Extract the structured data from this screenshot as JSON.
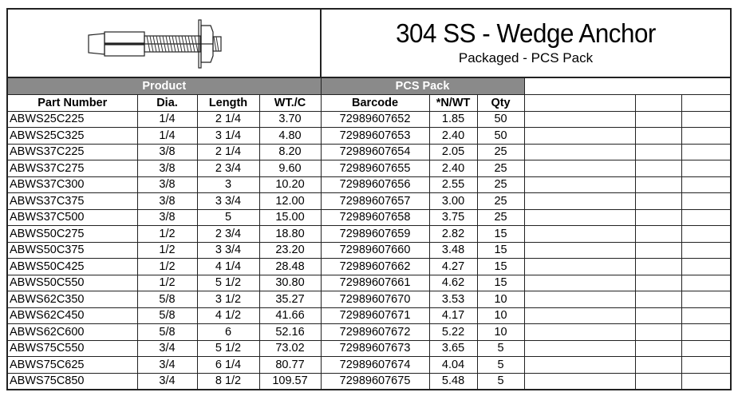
{
  "header": {
    "title": "304 SS - Wedge Anchor",
    "subtitle": "Packaged -  PCS Pack",
    "image": "wedge-anchor-illustration"
  },
  "groups": {
    "product": "Product",
    "pcs_pack": "PCS Pack"
  },
  "columns": [
    "Part Number",
    "Dia.",
    "Length",
    "WT./C",
    "Barcode",
    "*N/WT",
    "Qty"
  ],
  "rows": [
    [
      "ABWS25C225",
      "1/4",
      "2 1/4",
      "3.70",
      "72989607652",
      "1.85",
      "50"
    ],
    [
      "ABWS25C325",
      "1/4",
      "3 1/4",
      "4.80",
      "72989607653",
      "2.40",
      "50"
    ],
    [
      "ABWS37C225",
      "3/8",
      "2 1/4",
      "8.20",
      "72989607654",
      "2.05",
      "25"
    ],
    [
      "ABWS37C275",
      "3/8",
      "2 3/4",
      "9.60",
      "72989607655",
      "2.40",
      "25"
    ],
    [
      "ABWS37C300",
      "3/8",
      "3",
      "10.20",
      "72989607656",
      "2.55",
      "25"
    ],
    [
      "ABWS37C375",
      "3/8",
      "3 3/4",
      "12.00",
      "72989607657",
      "3.00",
      "25"
    ],
    [
      "ABWS37C500",
      "3/8",
      "5",
      "15.00",
      "72989607658",
      "3.75",
      "25"
    ],
    [
      "ABWS50C275",
      "1/2",
      "2 3/4",
      "18.80",
      "72989607659",
      "2.82",
      "15"
    ],
    [
      "ABWS50C375",
      "1/2",
      "3 3/4",
      "23.20",
      "72989607660",
      "3.48",
      "15"
    ],
    [
      "ABWS50C425",
      "1/2",
      "4 1/4",
      "28.48",
      "72989607662",
      "4.27",
      "15"
    ],
    [
      "ABWS50C550",
      "1/2",
      "5 1/2",
      "30.80",
      "72989607661",
      "4.62",
      "15"
    ],
    [
      "ABWS62C350",
      "5/8",
      "3 1/2",
      "35.27",
      "72989607670",
      "3.53",
      "10"
    ],
    [
      "ABWS62C450",
      "5/8",
      "4 1/2",
      "41.66",
      "72989607671",
      "4.17",
      "10"
    ],
    [
      "ABWS62C600",
      "5/8",
      "6",
      "52.16",
      "72989607672",
      "5.22",
      "10"
    ],
    [
      "ABWS75C550",
      "3/4",
      "5 1/2",
      "73.02",
      "72989607673",
      "3.65",
      "5"
    ],
    [
      "ABWS75C625",
      "3/4",
      "6 1/4",
      "80.77",
      "72989607674",
      "4.04",
      "5"
    ],
    [
      "ABWS75C850",
      "3/4",
      "8 1/2",
      "109.57",
      "72989607675",
      "5.48",
      "5"
    ]
  ]
}
